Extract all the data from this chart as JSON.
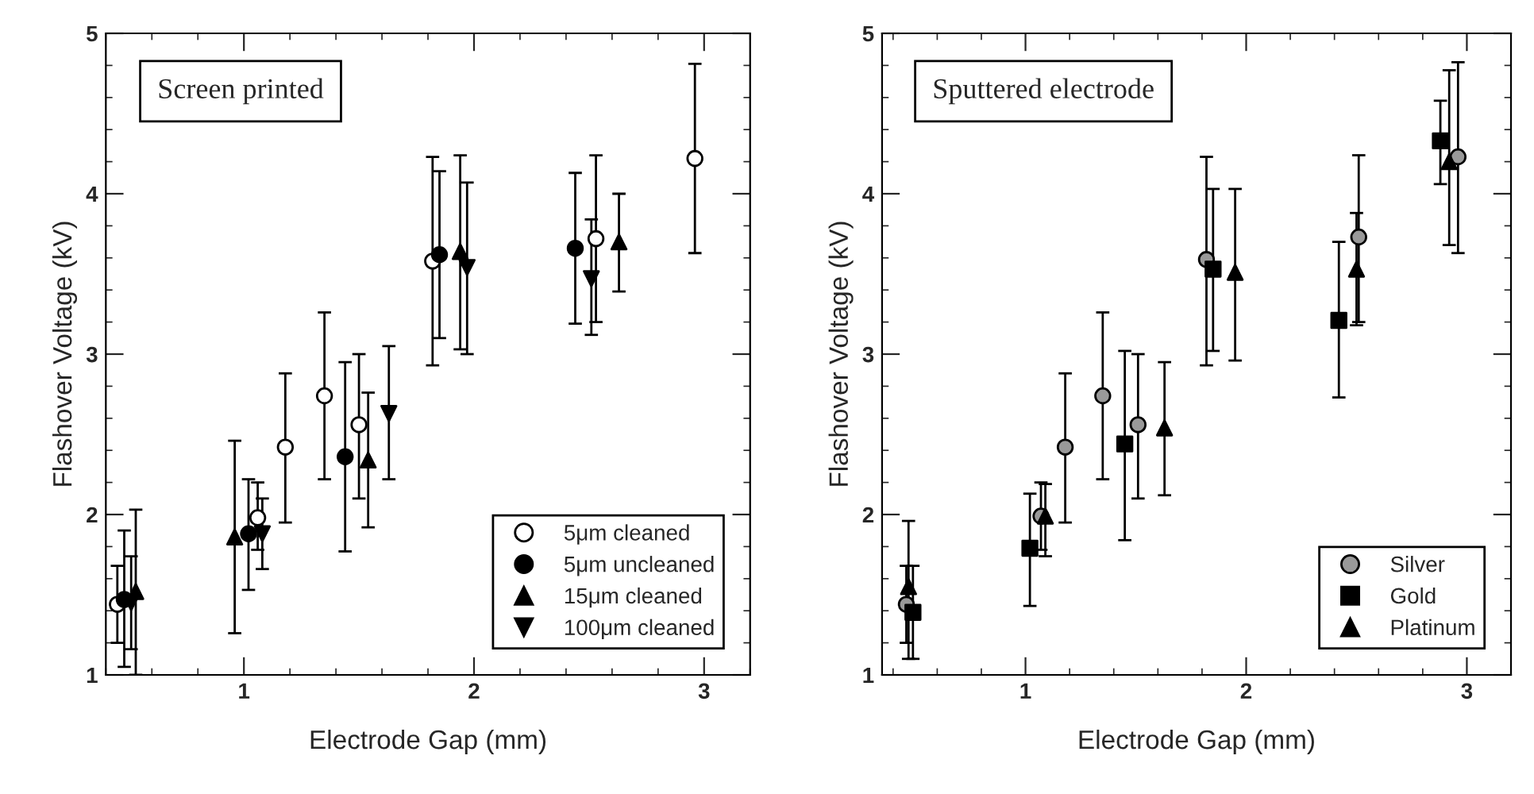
{
  "chart_data": [
    {
      "type": "scatter",
      "annotations": [
        "Screen printed"
      ],
      "xlabel": "Electrode Gap (mm)",
      "ylabel": "Flashover Voltage (kV)",
      "xlim": [
        0.4,
        3.2
      ],
      "ylim": [
        1,
        5
      ],
      "xticks": [
        1,
        2,
        3
      ],
      "yticks": [
        1,
        2,
        3,
        4,
        5
      ],
      "legend": "bottom right",
      "grid": false,
      "series": [
        {
          "name": "5μm cleaned",
          "marker": "circle",
          "color": "#ffffff",
          "x": [
            0.45,
            1.06,
            1.18,
            1.35,
            1.5,
            1.82,
            2.53,
            2.96
          ],
          "values": [
            1.44,
            1.98,
            2.42,
            2.74,
            2.56,
            3.58,
            3.72,
            4.22
          ],
          "errors": [
            [
              1.2,
              1.68
            ],
            [
              1.78,
              2.2
            ],
            [
              1.95,
              2.88
            ],
            [
              2.22,
              3.26
            ],
            [
              2.1,
              3.0
            ],
            [
              2.93,
              4.23
            ],
            [
              3.2,
              4.24
            ],
            [
              3.63,
              4.81
            ]
          ]
        },
        {
          "name": "5μm uncleaned",
          "marker": "circle",
          "color": "#000000",
          "x": [
            0.48,
            1.02,
            1.44,
            1.85,
            2.44
          ],
          "values": [
            1.47,
            1.88,
            2.36,
            3.62,
            3.66
          ],
          "errors": [
            [
              1.05,
              1.9
            ],
            [
              1.53,
              2.22
            ],
            [
              1.77,
              2.95
            ],
            [
              3.1,
              4.14
            ],
            [
              3.19,
              4.13
            ]
          ]
        },
        {
          "name": "15μm cleaned",
          "marker": "triangle",
          "color": "#000000",
          "x": [
            0.53,
            0.96,
            1.54,
            1.94,
            2.63
          ],
          "values": [
            1.52,
            1.86,
            2.34,
            3.64,
            3.7
          ],
          "errors": [
            [
              1.0,
              2.03
            ],
            [
              1.26,
              2.46
            ],
            [
              1.92,
              2.76
            ],
            [
              3.03,
              4.24
            ],
            [
              3.39,
              4.0
            ]
          ]
        },
        {
          "name": "100μm cleaned",
          "marker": "triangle_down",
          "color": "#000000",
          "x": [
            0.51,
            1.08,
            1.63,
            1.97,
            2.51
          ],
          "values": [
            1.45,
            1.88,
            2.63,
            3.54,
            3.47
          ],
          "errors": [
            [
              1.16,
              1.74
            ],
            [
              1.66,
              2.1
            ],
            [
              2.22,
              3.05
            ],
            [
              3.0,
              4.07
            ],
            [
              3.12,
              3.84
            ]
          ]
        }
      ]
    },
    {
      "type": "scatter",
      "annotations": [
        "Sputtered electrode"
      ],
      "xlabel": "Electrode Gap (mm)",
      "ylabel": "Flashover Voltage (kV)",
      "xlim": [
        0.35,
        3.2
      ],
      "ylim": [
        1,
        5
      ],
      "xticks": [
        1,
        2,
        3
      ],
      "yticks": [
        1,
        2,
        3,
        4,
        5
      ],
      "legend": "bottom right",
      "grid": false,
      "series": [
        {
          "name": "Silver",
          "marker": "circle",
          "color": "#999999",
          "x": [
            0.46,
            1.07,
            1.18,
            1.35,
            1.51,
            1.82,
            2.51,
            2.96
          ],
          "values": [
            1.44,
            1.99,
            2.42,
            2.74,
            2.56,
            3.59,
            3.73,
            4.23
          ],
          "errors": [
            [
              1.2,
              1.68
            ],
            [
              1.78,
              2.2
            ],
            [
              1.95,
              2.88
            ],
            [
              2.22,
              3.26
            ],
            [
              2.1,
              3.0
            ],
            [
              2.93,
              4.23
            ],
            [
              3.2,
              4.24
            ],
            [
              3.63,
              4.82
            ]
          ]
        },
        {
          "name": "Gold",
          "marker": "square",
          "color": "#000000",
          "x": [
            0.49,
            1.02,
            1.45,
            1.85,
            2.42,
            2.88
          ],
          "values": [
            1.39,
            1.79,
            2.44,
            3.53,
            3.21,
            4.33
          ],
          "errors": [
            [
              1.1,
              1.68
            ],
            [
              1.43,
              2.13
            ],
            [
              1.84,
              3.02
            ],
            [
              3.02,
              4.03
            ],
            [
              2.73,
              3.7
            ],
            [
              4.06,
              4.58
            ]
          ]
        },
        {
          "name": "Platinum",
          "marker": "triangle",
          "color": "#000000",
          "x": [
            0.47,
            1.09,
            1.63,
            1.95,
            2.5,
            2.92
          ],
          "values": [
            1.55,
            1.99,
            2.54,
            3.51,
            3.53,
            4.2
          ],
          "errors": [
            [
              1.1,
              1.96
            ],
            [
              1.74,
              2.19
            ],
            [
              2.12,
              2.95
            ],
            [
              2.96,
              4.03
            ],
            [
              3.18,
              3.88
            ],
            [
              3.68,
              4.77
            ]
          ]
        }
      ]
    }
  ]
}
